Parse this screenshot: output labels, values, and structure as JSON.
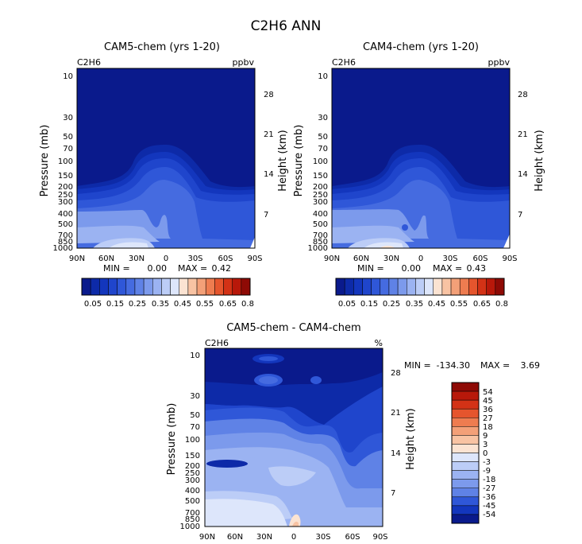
{
  "figure_title": "C2H6 ANN",
  "colors": {
    "seq_blue": [
      "#0a1a8c",
      "#0d2aa8",
      "#1336bd",
      "#1f45cc",
      "#2f57d8",
      "#456be0",
      "#5f82e6",
      "#7c9aec",
      "#9bb3f2",
      "#bccdf7",
      "#dde6fb"
    ],
    "seq_warm": [
      "#fbe3d2",
      "#f8c3a3",
      "#f3a078",
      "#ee7c50",
      "#e5552d",
      "#d33216",
      "#b8180a",
      "#8e0a05"
    ],
    "diff_scale": [
      "#0a1a8c",
      "#1336bd",
      "#2f57d8",
      "#5f82e6",
      "#7c9aec",
      "#9bb3f2",
      "#bccdf7",
      "#dde6fb",
      "#fbe3d2",
      "#f8c3a3",
      "#f3a078",
      "#ee7c50",
      "#e5552d",
      "#d33216",
      "#b8180a",
      "#8e0a05"
    ]
  },
  "chart_data": [
    {
      "type": "heatmap",
      "title": "CAM5-chem (yrs 1-20)",
      "left_label": "C2H6",
      "right_label": "ppbv",
      "xlabel": "",
      "ylabel": "Pressure (mb)",
      "y2label": "Height (km)",
      "x_ticks": [
        "90N",
        "60N",
        "30N",
        "0",
        "30S",
        "60S",
        "90S"
      ],
      "y_ticks": [
        "10",
        "30",
        "50",
        "70",
        "100",
        "150",
        "200",
        "250",
        "300",
        "400",
        "500",
        "700",
        "850",
        "1000"
      ],
      "y2_ticks": [
        "28",
        "21",
        "14",
        "7"
      ],
      "stats": {
        "min_label": "MIN =",
        "min": "0.00",
        "max_label": "MAX =",
        "max": "0.42"
      },
      "colorbar_labels": [
        "0.05",
        "0.15",
        "0.25",
        "0.35",
        "0.45",
        "0.55",
        "0.65",
        "0.8"
      ],
      "contour_levels": [
        0.05,
        0.1,
        0.15,
        0.2,
        0.25,
        0.3,
        0.35,
        0.4,
        0.45,
        0.5,
        0.55,
        0.6,
        0.65,
        0.7,
        0.8
      ]
    },
    {
      "type": "heatmap",
      "title": "CAM4-chem (yrs 1-20)",
      "left_label": "C2H6",
      "right_label": "ppbv",
      "xlabel": "",
      "ylabel": "Pressure (mb)",
      "y2label": "Height (km)",
      "x_ticks": [
        "90N",
        "60N",
        "30N",
        "0",
        "30S",
        "60S",
        "90S"
      ],
      "y_ticks": [
        "10",
        "30",
        "50",
        "70",
        "100",
        "150",
        "200",
        "250",
        "300",
        "400",
        "500",
        "700",
        "850",
        "1000"
      ],
      "y2_ticks": [
        "28",
        "21",
        "14",
        "7"
      ],
      "stats": {
        "min_label": "MIN =",
        "min": "0.00",
        "max_label": "MAX =",
        "max": "0.43"
      },
      "colorbar_labels": [
        "0.05",
        "0.15",
        "0.25",
        "0.35",
        "0.45",
        "0.55",
        "0.65",
        "0.8"
      ],
      "contour_levels": [
        0.05,
        0.1,
        0.15,
        0.2,
        0.25,
        0.3,
        0.35,
        0.4,
        0.45,
        0.5,
        0.55,
        0.6,
        0.65,
        0.7,
        0.8
      ]
    },
    {
      "type": "heatmap",
      "title": "CAM5-chem - CAM4-chem",
      "left_label": "C2H6",
      "right_label": "%",
      "xlabel": "",
      "ylabel": "Pressure (mb)",
      "y2label": "Height (km)",
      "x_ticks": [
        "90N",
        "60N",
        "30N",
        "0",
        "30S",
        "60S",
        "90S"
      ],
      "y_ticks": [
        "10",
        "30",
        "50",
        "70",
        "100",
        "150",
        "200",
        "250",
        "300",
        "400",
        "500",
        "700",
        "850",
        "1000"
      ],
      "y2_ticks": [
        "28",
        "21",
        "14",
        "7"
      ],
      "stats": {
        "min_label": "MIN =",
        "min": "-134.30",
        "max_label": "MAX =",
        "max": "3.69"
      },
      "colorbar_labels": [
        "54",
        "45",
        "36",
        "27",
        "18",
        "9",
        "3",
        "0",
        "-3",
        "-9",
        "-18",
        "-27",
        "-36",
        "-45",
        "-54"
      ],
      "contour_levels": [
        -54,
        -45,
        -36,
        -27,
        -18,
        -9,
        -3,
        0,
        3,
        9,
        18,
        27,
        36,
        45,
        54
      ]
    }
  ]
}
